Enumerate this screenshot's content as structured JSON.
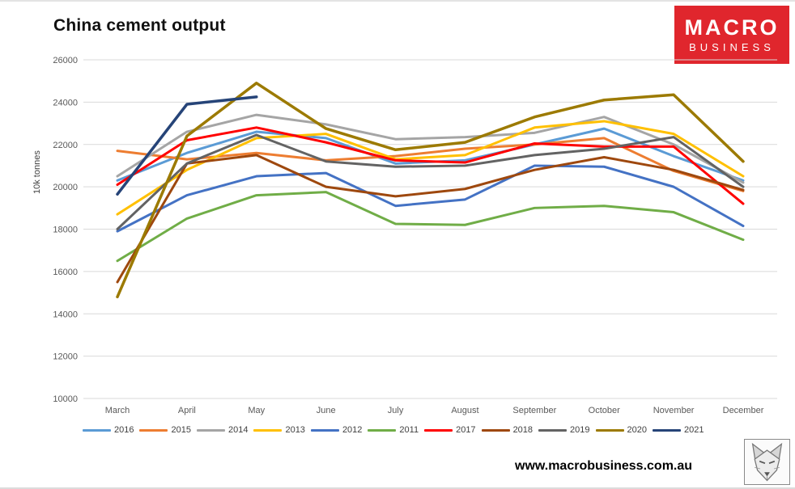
{
  "page": {
    "title": "China cement output",
    "website": "www.macrobusiness.com.au"
  },
  "logo": {
    "line1": "MACRO",
    "line2": "BUSINESS",
    "color": "#e0262d"
  },
  "chart_data": {
    "type": "line",
    "title": "China cement output",
    "xlabel": "",
    "ylabel": "10k tonnes",
    "ylim": [
      10000,
      26000
    ],
    "ytick_step": 2000,
    "grid": "horizontal",
    "legend_position": "bottom",
    "categories": [
      "March",
      "April",
      "May",
      "June",
      "July",
      "August",
      "September",
      "October",
      "November",
      "December"
    ],
    "series": [
      {
        "name": "2016",
        "color": "#5B9BD5",
        "values": [
          20300,
          21600,
          22600,
          22300,
          21100,
          21250,
          22000,
          22750,
          21450,
          20300
        ]
      },
      {
        "name": "2015",
        "color": "#ED7D31",
        "values": [
          21700,
          21300,
          21600,
          21250,
          21450,
          21800,
          22000,
          22300,
          20750,
          19800
        ]
      },
      {
        "name": "2014",
        "color": "#A5A5A5",
        "values": [
          20500,
          22600,
          23400,
          22950,
          22250,
          22350,
          22550,
          23300,
          22000,
          20200
        ]
      },
      {
        "name": "2013",
        "color": "#FFC000",
        "values": [
          18700,
          20800,
          22300,
          22500,
          21300,
          21500,
          22800,
          23100,
          22500,
          20500
        ]
      },
      {
        "name": "2012",
        "color": "#4472C4",
        "values": [
          17900,
          19600,
          20500,
          20650,
          19100,
          19400,
          21000,
          20950,
          20000,
          18150
        ]
      },
      {
        "name": "2011",
        "color": "#70AD47",
        "values": [
          16500,
          18500,
          19600,
          19750,
          18250,
          18200,
          19000,
          19100,
          18800,
          17500
        ]
      },
      {
        "name": "2017",
        "color": "#FF0000",
        "values": [
          20100,
          22200,
          22800,
          22100,
          21250,
          21150,
          22050,
          21900,
          21900,
          19200
        ]
      },
      {
        "name": "2018",
        "color": "#9E480E",
        "values": [
          15500,
          21100,
          21500,
          20000,
          19550,
          19900,
          20800,
          21400,
          20800,
          19850
        ]
      },
      {
        "name": "2019",
        "color": "#636363",
        "values": [
          18000,
          21100,
          22450,
          21200,
          20950,
          21000,
          21500,
          21800,
          22350,
          20000
        ]
      },
      {
        "name": "2020",
        "color": "#9C7A00",
        "values": [
          14800,
          22400,
          24900,
          22750,
          21750,
          22100,
          23300,
          24100,
          24350,
          21200
        ]
      },
      {
        "name": "2021",
        "color": "#264478",
        "values": [
          19650,
          23900,
          24250,
          null,
          null,
          null,
          null,
          null,
          null,
          null
        ]
      }
    ]
  }
}
